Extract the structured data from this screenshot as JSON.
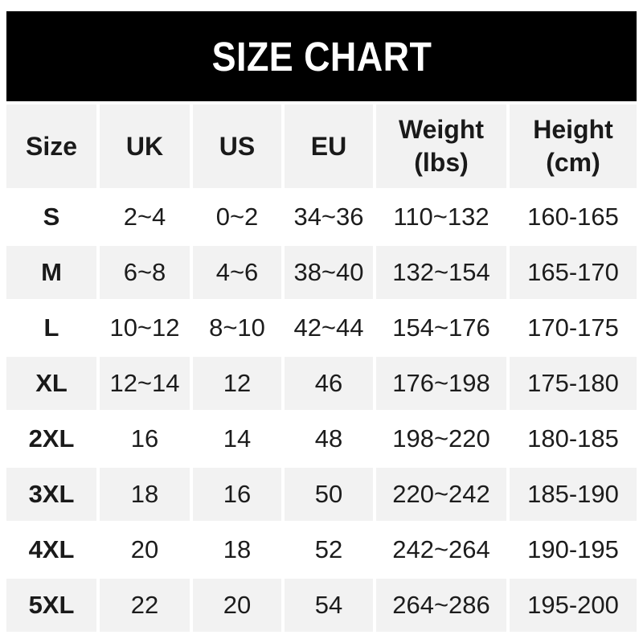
{
  "title": "SIZE CHART",
  "colors": {
    "banner_bg": "#000000",
    "banner_text": "#ffffff",
    "alt_row_bg": "#f2f2f2",
    "text": "#1a1a1a",
    "page_bg": "#ffffff"
  },
  "chart_data": {
    "type": "table",
    "title": "SIZE CHART",
    "columns": [
      {
        "label": "Size"
      },
      {
        "label": "UK"
      },
      {
        "label": "US"
      },
      {
        "label": "EU"
      },
      {
        "label": "Weight",
        "sub": "(lbs)"
      },
      {
        "label": "Height",
        "sub": "(cm)"
      }
    ],
    "rows": [
      {
        "size": "S",
        "uk": "2~4",
        "us": "0~2",
        "eu": "34~36",
        "weight": "110~132",
        "height": "160-165"
      },
      {
        "size": "M",
        "uk": "6~8",
        "us": "4~6",
        "eu": "38~40",
        "weight": "132~154",
        "height": "165-170"
      },
      {
        "size": "L",
        "uk": "10~12",
        "us": "8~10",
        "eu": "42~44",
        "weight": "154~176",
        "height": "170-175"
      },
      {
        "size": "XL",
        "uk": "12~14",
        "us": "12",
        "eu": "46",
        "weight": "176~198",
        "height": "175-180"
      },
      {
        "size": "2XL",
        "uk": "16",
        "us": "14",
        "eu": "48",
        "weight": "198~220",
        "height": "180-185"
      },
      {
        "size": "3XL",
        "uk": "18",
        "us": "16",
        "eu": "50",
        "weight": "220~242",
        "height": "185-190"
      },
      {
        "size": "4XL",
        "uk": "20",
        "us": "18",
        "eu": "52",
        "weight": "242~264",
        "height": "190-195"
      },
      {
        "size": "5XL",
        "uk": "22",
        "us": "20",
        "eu": "54",
        "weight": "264~286",
        "height": "195-200"
      }
    ]
  }
}
